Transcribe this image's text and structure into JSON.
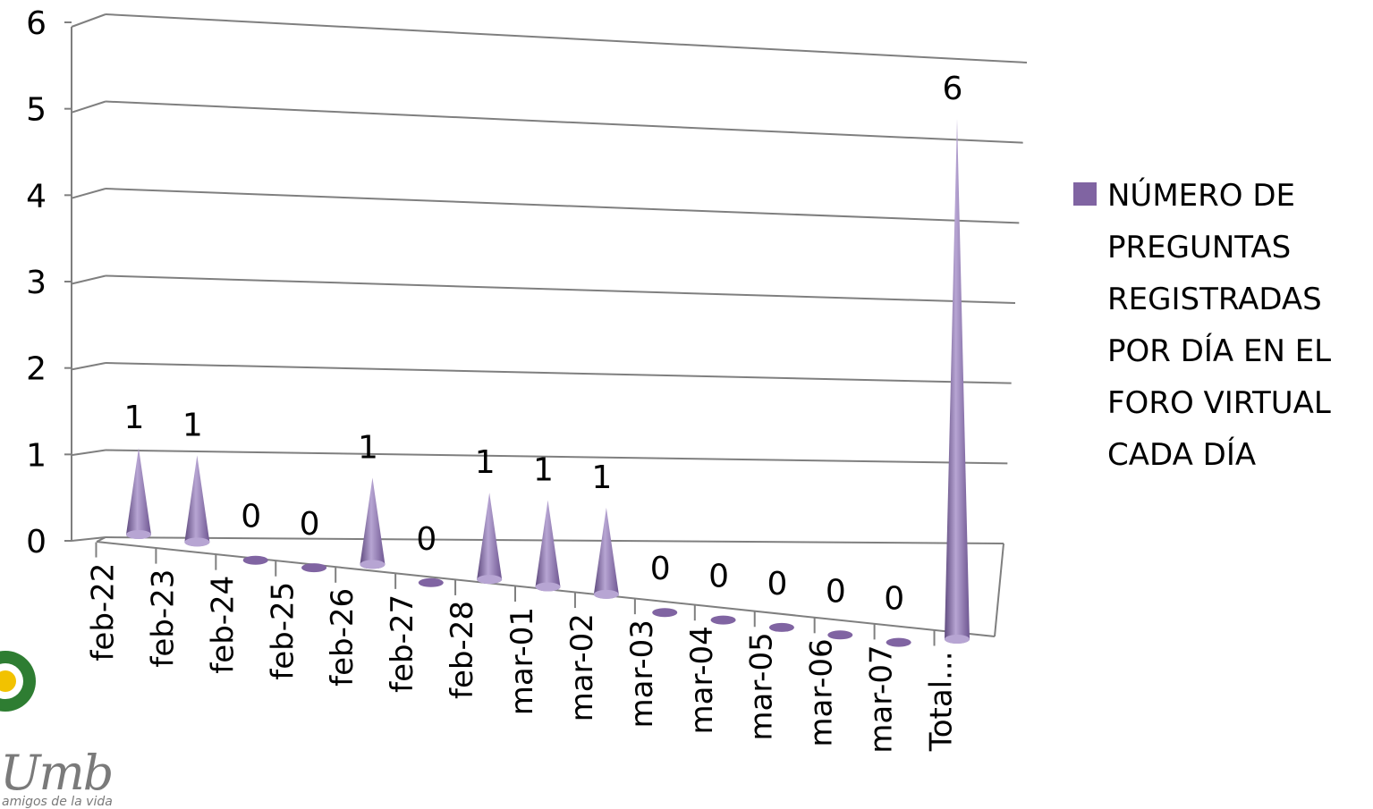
{
  "chart_data": {
    "type": "bar",
    "mark_shape": "cone",
    "categories": [
      "feb-22",
      "feb-23",
      "feb-24",
      "feb-25",
      "feb-26",
      "feb-27",
      "feb-28",
      "mar-01",
      "mar-02",
      "mar-03",
      "mar-04",
      "mar-05",
      "mar-06",
      "mar-07",
      "Total..."
    ],
    "series": [
      {
        "name": "NÚMERO DE PREGUNTAS REGISTRADAS POR DÍA EN EL FORO VIRTUAL CADA DÍA",
        "values": [
          1,
          1,
          0,
          0,
          1,
          0,
          1,
          1,
          1,
          0,
          0,
          0,
          0,
          0,
          6
        ]
      }
    ],
    "data_labels": [
      "1",
      "1",
      "0",
      "0",
      "1",
      "0",
      "1",
      "1",
      "1",
      "0",
      "0",
      "0",
      "0",
      "0",
      "6"
    ],
    "y_ticks": [
      "0",
      "1",
      "2",
      "3",
      "4",
      "5",
      "6"
    ],
    "ylim": [
      0,
      6
    ],
    "grid": true,
    "legend_position": "right",
    "colors": {
      "cone": "#8064a2",
      "cone_dark": "#5f4a7e",
      "cone_light": "#b7a5d3",
      "grid": "#7f7f7f"
    }
  },
  "logo": {
    "text": "Umb",
    "tagline": "amigos de la vida",
    "colors": {
      "ring": "#2e7d32",
      "text": "#7a7a7a"
    }
  }
}
